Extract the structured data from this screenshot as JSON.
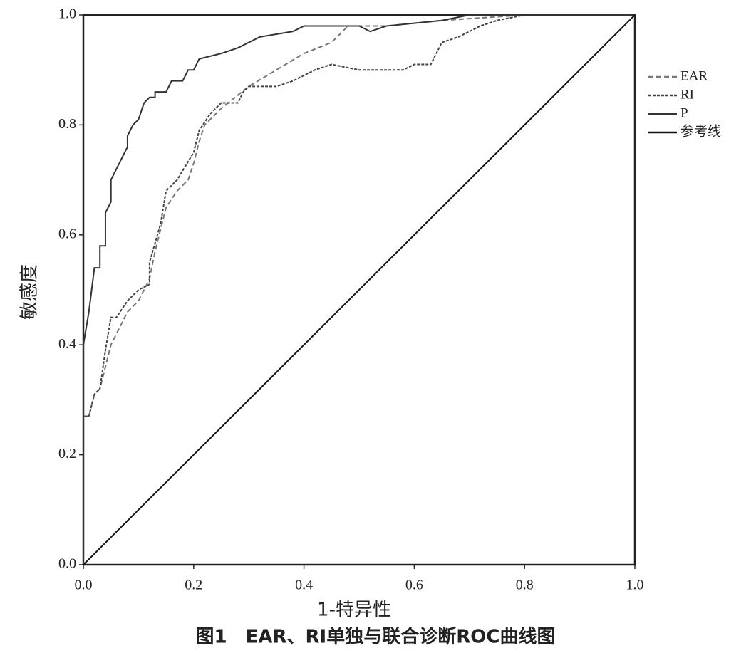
{
  "chart_data": {
    "type": "line",
    "title": "图1　EAR、RI单独与联合诊断ROC曲线图",
    "xlabel": "1-特异性",
    "ylabel": "敏感度",
    "xlim": [
      0,
      1
    ],
    "ylim": [
      0,
      1
    ],
    "xticks": [
      {
        "value": 0,
        "label": "0.0"
      },
      {
        "value": 0.2,
        "label": "0.2"
      },
      {
        "value": 0.4,
        "label": "0.4"
      },
      {
        "value": 0.6,
        "label": "0.6"
      },
      {
        "value": 0.8,
        "label": "0.8"
      },
      {
        "value": 1,
        "label": "1.0"
      }
    ],
    "yticks": [
      {
        "value": 0,
        "label": "0.0"
      },
      {
        "value": 0.2,
        "label": "0.2"
      },
      {
        "value": 0.4,
        "label": "0.4"
      },
      {
        "value": 0.6,
        "label": "0.6"
      },
      {
        "value": 0.8,
        "label": "0.8"
      },
      {
        "value": 1,
        "label": "1.0"
      }
    ],
    "legend": "right",
    "series": [
      {
        "name": "EAR",
        "color": "#777777",
        "dash": "dashed",
        "x": [
          0,
          0,
          0.01,
          0.02,
          0.03,
          0.04,
          0.05,
          0.06,
          0.08,
          0.1,
          0.12,
          0.13,
          0.14,
          0.15,
          0.17,
          0.19,
          0.2,
          0.21,
          0.22,
          0.25,
          0.3,
          0.35,
          0.4,
          0.45,
          0.48,
          0.55,
          0.65,
          0.8,
          1
        ],
        "values": [
          0,
          0.27,
          0.27,
          0.31,
          0.32,
          0.36,
          0.4,
          0.42,
          0.46,
          0.48,
          0.52,
          0.57,
          0.61,
          0.65,
          0.68,
          0.7,
          0.73,
          0.77,
          0.8,
          0.83,
          0.87,
          0.9,
          0.93,
          0.95,
          0.98,
          0.98,
          0.99,
          1,
          1
        ]
      },
      {
        "name": "RI",
        "color": "#444444",
        "dash": "dotted",
        "x": [
          0,
          0,
          0.01,
          0.02,
          0.03,
          0.04,
          0.05,
          0.06,
          0.08,
          0.1,
          0.12,
          0.12,
          0.14,
          0.15,
          0.17,
          0.2,
          0.21,
          0.23,
          0.25,
          0.28,
          0.29,
          0.3,
          0.35,
          0.38,
          0.42,
          0.45,
          0.5,
          0.55,
          0.58,
          0.6,
          0.63,
          0.65,
          0.68,
          0.7,
          0.72,
          0.75,
          0.8,
          1
        ],
        "values": [
          0,
          0.27,
          0.27,
          0.31,
          0.32,
          0.39,
          0.45,
          0.45,
          0.48,
          0.5,
          0.51,
          0.55,
          0.62,
          0.68,
          0.7,
          0.75,
          0.79,
          0.82,
          0.84,
          0.84,
          0.86,
          0.87,
          0.87,
          0.88,
          0.9,
          0.91,
          0.9,
          0.9,
          0.9,
          0.91,
          0.91,
          0.95,
          0.96,
          0.97,
          0.98,
          0.99,
          1,
          1
        ]
      },
      {
        "name": "P",
        "color": "#333333",
        "dash": "solid",
        "x": [
          0,
          0,
          0.01,
          0.02,
          0.03,
          0.03,
          0.04,
          0.04,
          0.05,
          0.05,
          0.06,
          0.07,
          0.08,
          0.08,
          0.09,
          0.1,
          0.11,
          0.12,
          0.13,
          0.13,
          0.15,
          0.16,
          0.18,
          0.19,
          0.2,
          0.21,
          0.25,
          0.28,
          0.32,
          0.38,
          0.4,
          0.45,
          0.5,
          0.52,
          0.55,
          0.65,
          0.7,
          1
        ],
        "values": [
          0,
          0.4,
          0.46,
          0.54,
          0.54,
          0.58,
          0.58,
          0.64,
          0.66,
          0.7,
          0.72,
          0.74,
          0.76,
          0.78,
          0.8,
          0.81,
          0.84,
          0.85,
          0.85,
          0.86,
          0.86,
          0.88,
          0.88,
          0.9,
          0.9,
          0.92,
          0.93,
          0.94,
          0.96,
          0.97,
          0.98,
          0.98,
          0.98,
          0.97,
          0.98,
          0.99,
          1,
          1
        ]
      },
      {
        "name": "参考线",
        "color": "#111111",
        "dash": "solid",
        "x": [
          0,
          1
        ],
        "values": [
          0,
          1
        ]
      }
    ]
  }
}
